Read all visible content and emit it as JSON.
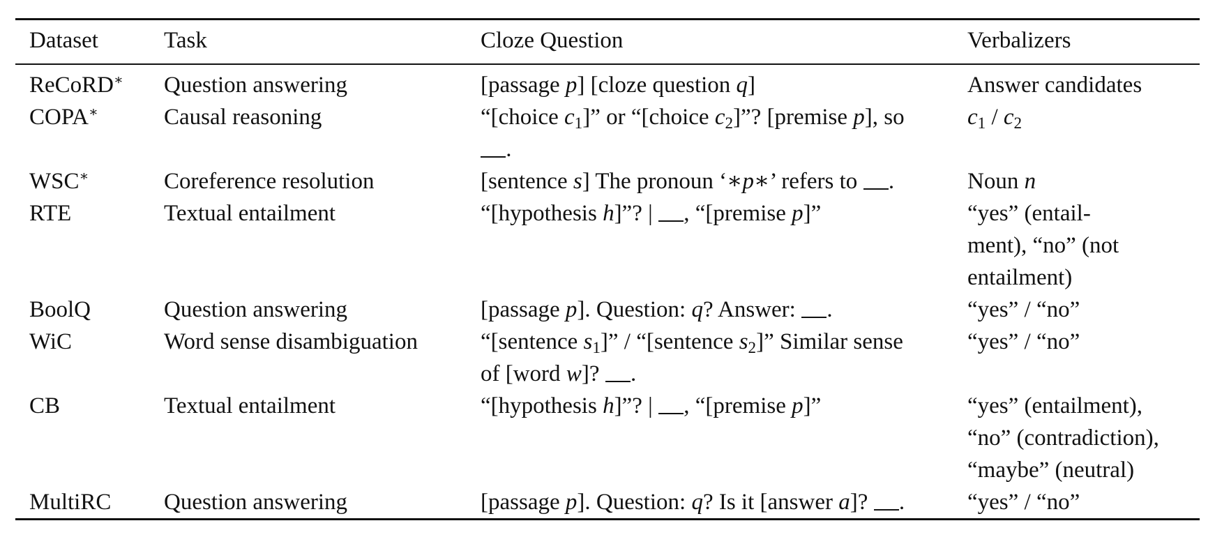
{
  "table": {
    "headers": [
      "Dataset",
      "Task",
      "Cloze Question",
      "Verbalizers"
    ],
    "rows": [
      {
        "dataset": "ReCoRD*",
        "task": "Question answering",
        "cloze_lines": [
          "[passage p] [cloze question q]"
        ],
        "verbalizer_lines": [
          "Answer candidates"
        ]
      },
      {
        "dataset": "COPA*",
        "task": "Causal reasoning",
        "cloze_lines": [
          "“[choice c1]” or “[choice c2]”? [premise p], so",
          "__."
        ],
        "verbalizer_lines": [
          "c1 / c2"
        ]
      },
      {
        "dataset": "WSC*",
        "task": "Coreference resolution",
        "cloze_lines": [
          "[sentence s] The pronoun ‘∗p∗’ refers to __."
        ],
        "verbalizer_lines": [
          "Noun n"
        ]
      },
      {
        "dataset": "RTE",
        "task": "Textual entailment",
        "cloze_lines": [
          "“[hypothesis h]”? | __, “[premise p]”"
        ],
        "verbalizer_lines": [
          "“yes” (entail-",
          "ment), “no” (not",
          "entailment)"
        ]
      },
      {
        "dataset": "BoolQ",
        "task": "Question answering",
        "cloze_lines": [
          "[passage p]. Question: q? Answer: __."
        ],
        "verbalizer_lines": [
          "“yes” / “no”"
        ]
      },
      {
        "dataset": "WiC",
        "task": "Word sense disambiguation",
        "cloze_lines": [
          "“[sentence s1]” / “[sentence s2]” Similar sense",
          "of [word w]? __."
        ],
        "verbalizer_lines": [
          "“yes” / “no”"
        ]
      },
      {
        "dataset": "CB",
        "task": "Textual entailment",
        "cloze_lines": [
          "“[hypothesis h]”? | __, “[premise p]”"
        ],
        "verbalizer_lines": [
          "“yes” (entailment),",
          "“no” (contradiction),",
          "“maybe” (neutral)"
        ]
      },
      {
        "dataset": "MultiRC",
        "task": "Question answering",
        "cloze_lines": [
          "[passage p]. Question: q? Is it [answer a]? __."
        ],
        "verbalizer_lines": [
          "“yes” / “no”"
        ]
      }
    ]
  }
}
